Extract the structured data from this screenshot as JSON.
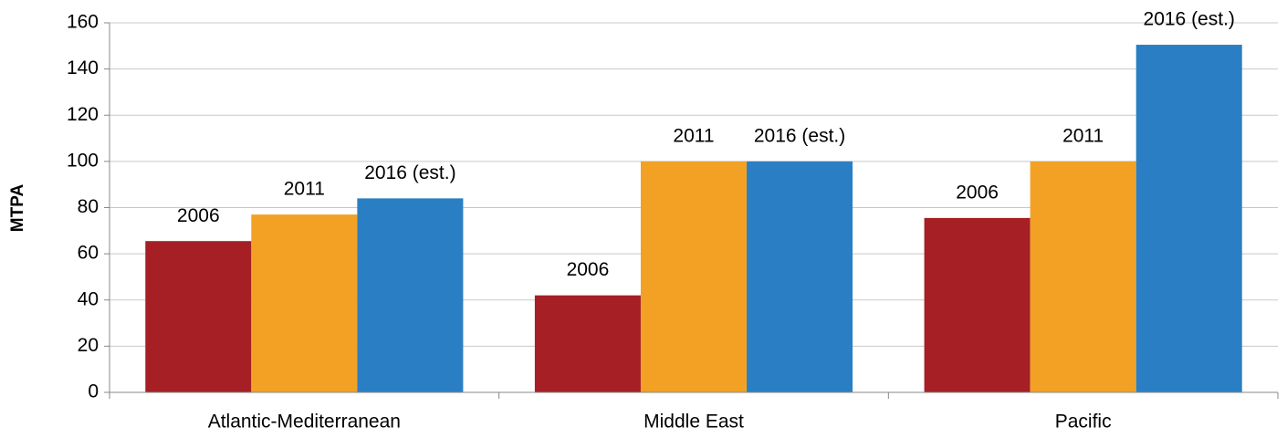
{
  "chart_data": {
    "type": "bar",
    "y_label": "MTPA",
    "categories": [
      "Atlantic-Mediterranean",
      "Middle East",
      "Pacific"
    ],
    "series": [
      {
        "name": "2006",
        "color": "#a51f24",
        "values": [
          65.5,
          42,
          75.5
        ]
      },
      {
        "name": "2011",
        "color": "#f2a125",
        "values": [
          77,
          100,
          100
        ]
      },
      {
        "name": "2016 (est.)",
        "color": "#2a7fc4",
        "values": [
          84,
          100,
          150.5
        ]
      }
    ],
    "ylim": [
      0,
      160
    ],
    "yticks": [
      0,
      20,
      40,
      60,
      80,
      100,
      120,
      140,
      160
    ],
    "grid": true
  }
}
